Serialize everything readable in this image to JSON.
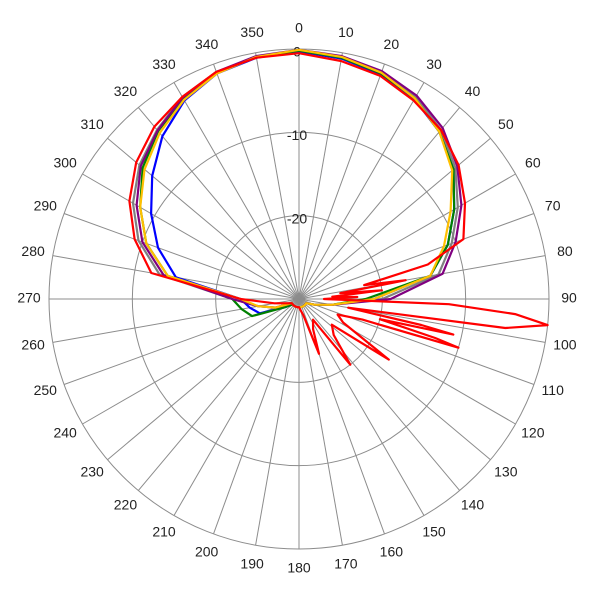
{
  "chart_data": {
    "type": "polar",
    "rlim": [
      -30,
      0
    ],
    "rticks": [
      -20,
      -10,
      0
    ],
    "theta_ticks": [
      0,
      10,
      20,
      30,
      40,
      50,
      60,
      70,
      80,
      90,
      100,
      110,
      120,
      130,
      140,
      150,
      160,
      170,
      180,
      190,
      200,
      210,
      220,
      230,
      240,
      250,
      260,
      270,
      280,
      290,
      300,
      310,
      320,
      330,
      340,
      350
    ],
    "grid": true,
    "theta": [
      0,
      10,
      20,
      30,
      40,
      50,
      60,
      70,
      80,
      90,
      100,
      110,
      120,
      130,
      140,
      150,
      160,
      170,
      180,
      190,
      200,
      210,
      220,
      230,
      240,
      250,
      260,
      270,
      280,
      290,
      300,
      310,
      320,
      330,
      340,
      350
    ],
    "series": [
      {
        "color": "#808080",
        "values": [
          -0.2,
          -0.5,
          -1,
          -2,
          -3.5,
          -5.5,
          -8,
          -10.5,
          -13,
          -20,
          -26,
          -28,
          -29,
          -29,
          -29,
          -29,
          -29,
          -29,
          -29,
          -29,
          -29,
          -29,
          -29,
          -29,
          -29,
          -27,
          -25,
          -22,
          -13,
          -9.5,
          -7,
          -5,
          -3.5,
          -2,
          -1,
          -0.5
        ]
      },
      {
        "color": "#0000ff",
        "values": [
          -0.3,
          -0.7,
          -1.3,
          -2.3,
          -3.8,
          -5.8,
          -8.5,
          -11,
          -14,
          -21,
          -26,
          -28,
          -29,
          -29,
          -29,
          -29,
          -29,
          -29,
          -29,
          -29,
          -29,
          -29,
          -29,
          -29,
          -28,
          -25,
          -24,
          -23,
          -15,
          -12,
          -9.5,
          -7,
          -4.5,
          -2.5,
          -1.2,
          -0.6
        ]
      },
      {
        "color": "#008000",
        "values": [
          -0.2,
          -0.6,
          -1.2,
          -2.2,
          -3.8,
          -5.8,
          -8.5,
          -11,
          -14,
          -22,
          -26,
          -28,
          -29,
          -29,
          -29,
          -29,
          -29,
          -29,
          -29,
          -29,
          -29,
          -29,
          -29,
          -29,
          -28,
          -24,
          -23,
          -22,
          -14,
          -10.5,
          -8,
          -5.5,
          -3.7,
          -2.2,
          -1.1,
          -0.5
        ]
      },
      {
        "color": "#800080",
        "values": [
          -0.1,
          -0.4,
          -0.9,
          -1.8,
          -3.2,
          -5.2,
          -7.5,
          -10,
          -12.5,
          -19,
          -26,
          -28,
          -29,
          -29,
          -29,
          -29,
          -29,
          -29,
          -29,
          -29,
          -29,
          -29,
          -29,
          -29,
          -29,
          -27,
          -25,
          -22,
          -13.5,
          -10,
          -7.5,
          -5.2,
          -3.6,
          -2.1,
          -1,
          -0.4
        ]
      },
      {
        "color": "#ffc000",
        "values": [
          -0.1,
          -0.5,
          -1.1,
          -2.2,
          -3.8,
          -6,
          -9,
          -11.5,
          -14,
          -21,
          -26,
          -28,
          -29,
          -29,
          -29,
          -29,
          -29,
          -29,
          -29,
          -29,
          -29,
          -29,
          -29,
          -29,
          -29,
          -27,
          -25,
          -23,
          -14,
          -10.5,
          -8,
          -5.8,
          -4,
          -2.4,
          -1.2,
          -0.5
        ]
      },
      {
        "color": "#ff0000",
        "theta": [
          0,
          10,
          20,
          30,
          40,
          50,
          60,
          70,
          75,
          78,
          80,
          82,
          84,
          86,
          88,
          90,
          92,
          94,
          96,
          98,
          100,
          102,
          103,
          104,
          106,
          107,
          108,
          112,
          118,
          124,
          128,
          136,
          142,
          146,
          155,
          160,
          165,
          180,
          200,
          220,
          240,
          260,
          270,
          280,
          290,
          300,
          310,
          320,
          330,
          340,
          350
        ],
        "values": [
          -0.5,
          -1,
          -1.5,
          -2.5,
          -3.5,
          -5,
          -7,
          -9,
          -14,
          -22,
          -17,
          -25,
          -20,
          -26,
          -23,
          -27,
          -12,
          -4,
          0,
          -5,
          -24,
          -15,
          -11,
          -20,
          -13,
          -10,
          -22,
          -25,
          -24,
          -17,
          -25,
          -24,
          -20,
          -27,
          -26,
          -23,
          -28,
          -29,
          -29,
          -29,
          -29,
          -27,
          -23,
          -12,
          -9,
          -6.5,
          -4.5,
          -3,
          -2,
          -1,
          -0.6
        ]
      }
    ]
  }
}
